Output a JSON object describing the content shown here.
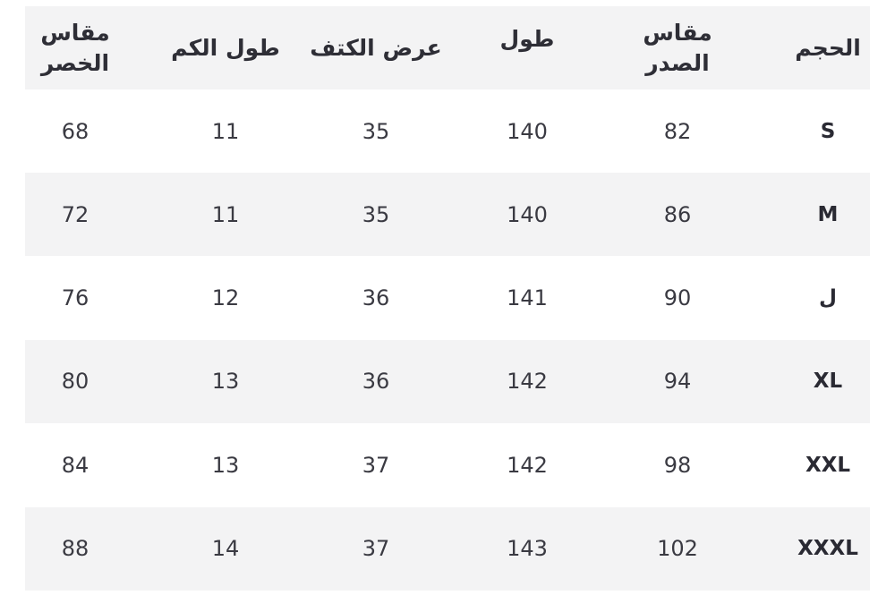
{
  "headers": [
    "الحجم",
    "مقاس الصدر",
    "طول",
    "عرض الكتف",
    "طول الكم",
    "مقاس الخصر"
  ],
  "rows": [
    {
      "size": "S",
      "values": [
        "82",
        "140",
        "35",
        "11",
        "68"
      ]
    },
    {
      "size": "M",
      "values": [
        "86",
        "140",
        "35",
        "11",
        "72"
      ]
    },
    {
      "size": "ل",
      "values": [
        "90",
        "141",
        "36",
        "12",
        "76"
      ]
    },
    {
      "size": "XL",
      "values": [
        "94",
        "142",
        "36",
        "13",
        "80"
      ]
    },
    {
      "size": "XXL",
      "values": [
        "98",
        "142",
        "37",
        "13",
        "84"
      ]
    },
    {
      "size": "XXXL",
      "values": [
        "102",
        "143",
        "37",
        "14",
        "88"
      ]
    }
  ],
  "colors": {
    "header_bg": "#f3f3f4",
    "alt_row_bg": "#f3f3f4",
    "text": "#2e2e36"
  }
}
